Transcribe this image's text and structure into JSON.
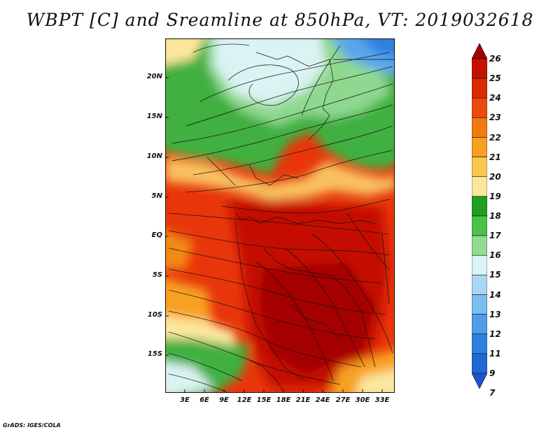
{
  "title": "WBPT [C] and Sreamline at 850hPa, VT: 2019032618",
  "credit": "GrADS: IGES/COLA",
  "lat_labels": [
    "20N",
    "15N",
    "10N",
    "5N",
    "EQ",
    "5S",
    "10S",
    "15S"
  ],
  "lon_labels": [
    "3E",
    "6E",
    "9E",
    "12E",
    "15E",
    "18E",
    "21E",
    "24E",
    "27E",
    "30E",
    "33E"
  ],
  "colorbar": {
    "labels": [
      "26",
      "25",
      "24",
      "23",
      "22",
      "21",
      "20",
      "19",
      "18",
      "17",
      "16",
      "15",
      "14",
      "13",
      "12",
      "11",
      "9",
      "7"
    ],
    "colors": [
      "#a50000",
      "#c41000",
      "#dc2a00",
      "#ec4a0a",
      "#f27a10",
      "#f8a020",
      "#fac850",
      "#fbe79c",
      "#1ea01e",
      "#4cc04c",
      "#90dc90",
      "#daf3f3",
      "#a9d7f5",
      "#7bbdf0",
      "#4f9ee8",
      "#2e80e0",
      "#1f68d8",
      "#1a54d0"
    ]
  }
}
